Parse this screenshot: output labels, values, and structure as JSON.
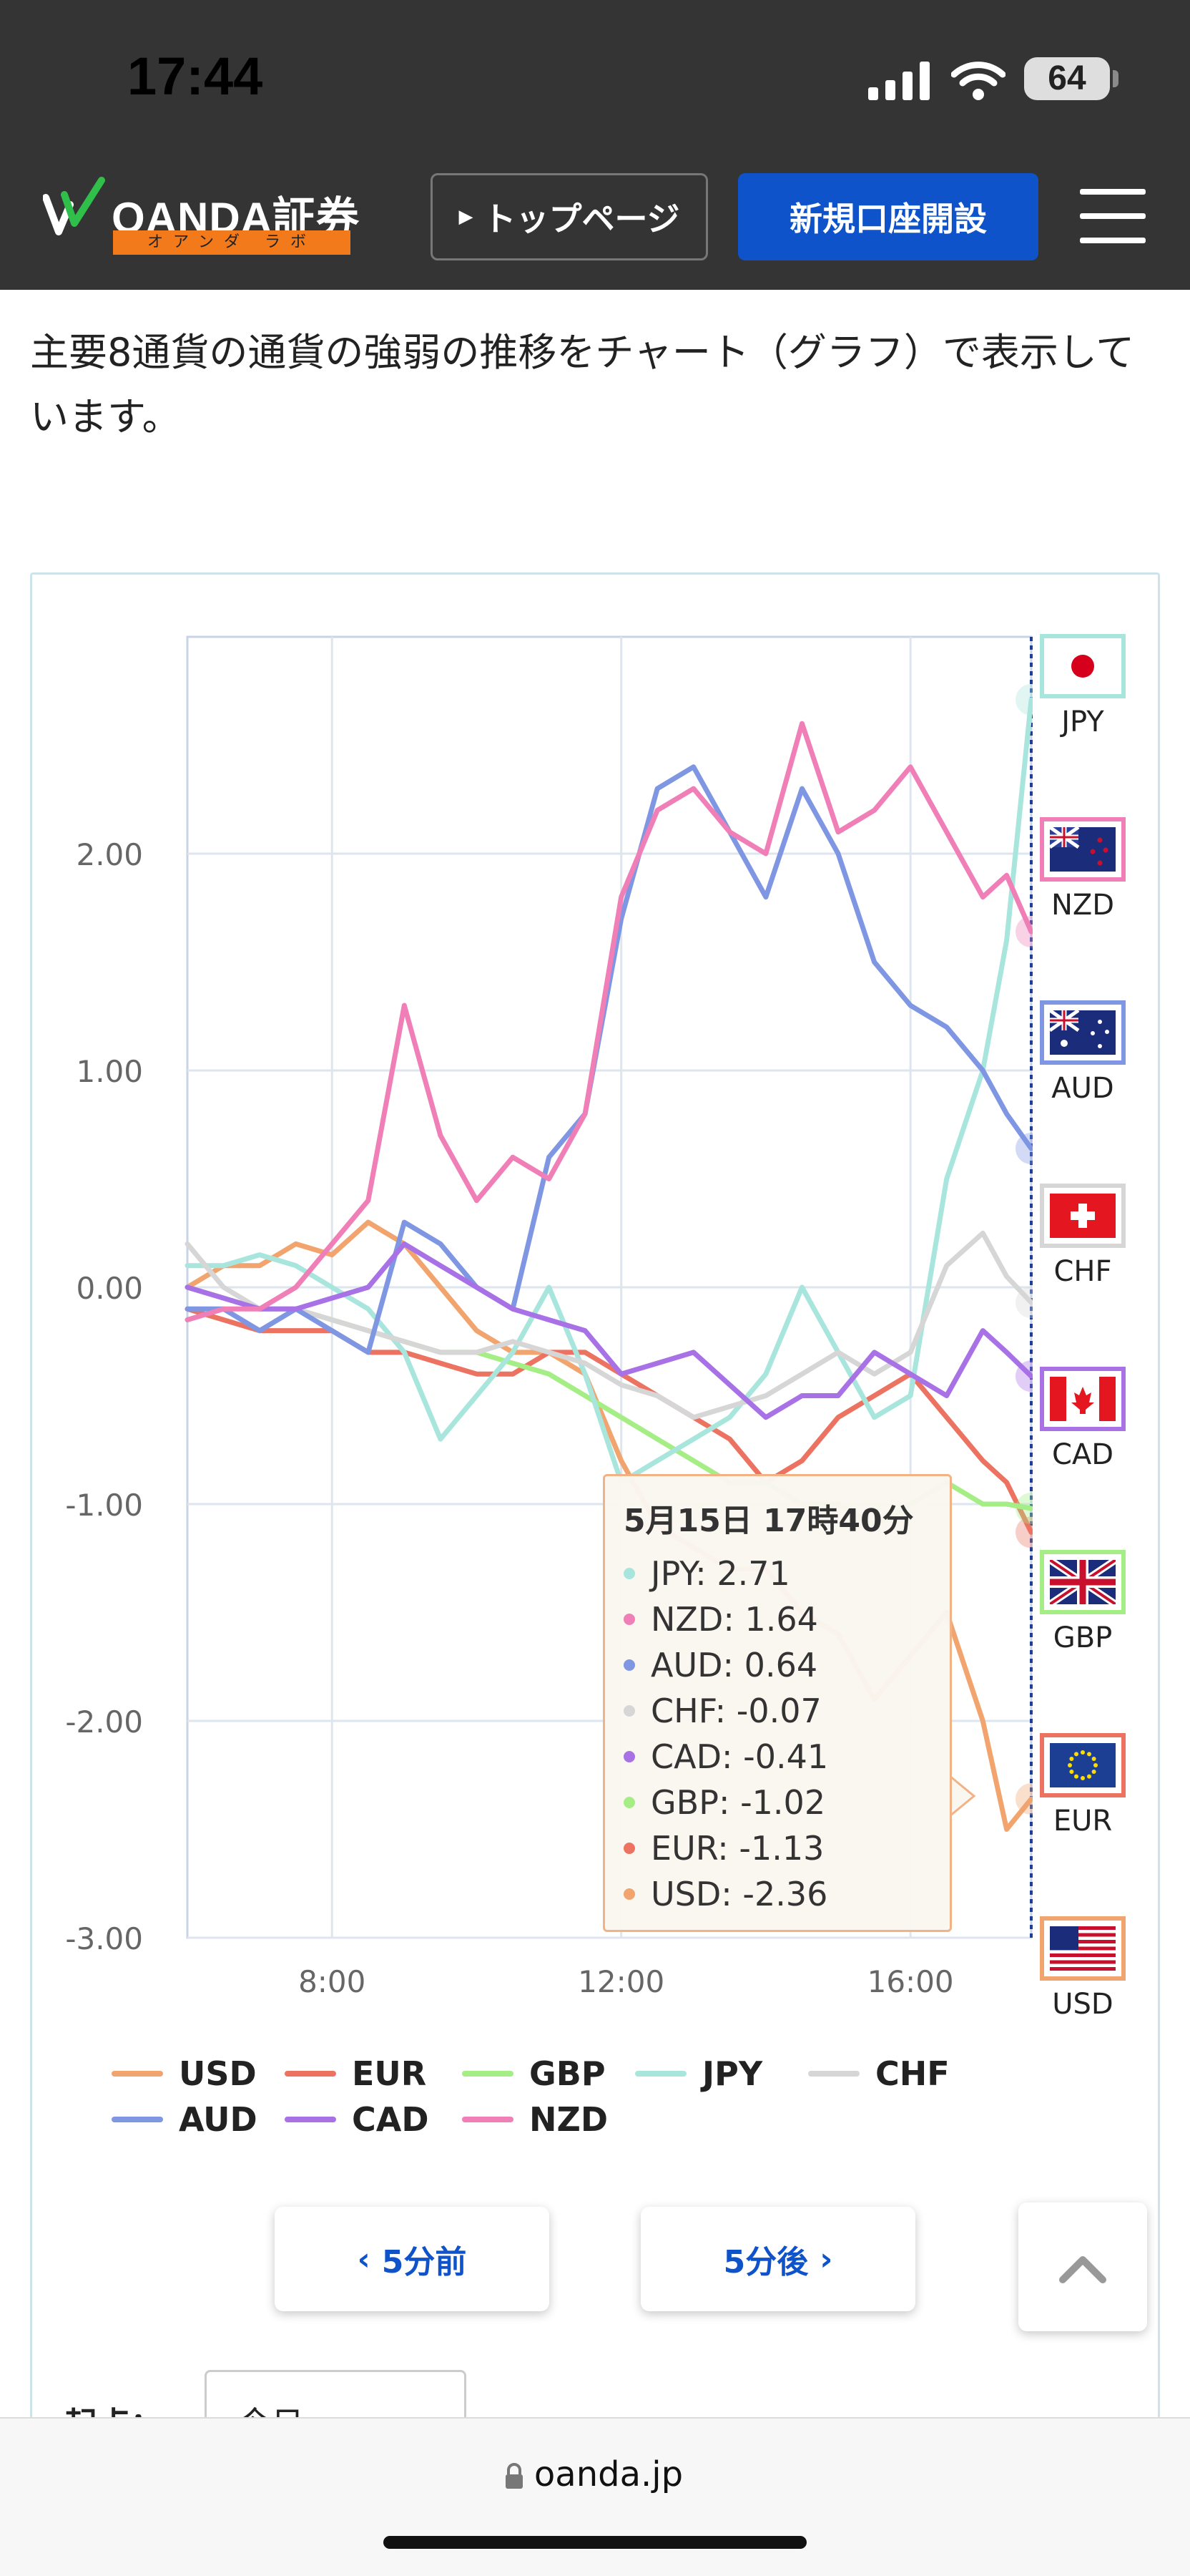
{
  "status_bar": {
    "time": "17:44",
    "battery": "64"
  },
  "header": {
    "logo_text": "OANDA証券",
    "logo_sub": "オアンダ ラボ",
    "toppage_label": "トップページ",
    "signup_label": "新規口座開設"
  },
  "intro": "主要8通貨の通貨の強弱の推移をチャート（グラフ）で表示しています。",
  "chart_data": {
    "type": "line",
    "ylim": [
      -3.0,
      3.0
    ],
    "y_ticks": [
      "2.00",
      "1.00",
      "0.00",
      "-1.00",
      "-2.00",
      "-3.00"
    ],
    "y_tick_values": [
      2,
      1,
      0,
      -1,
      -2,
      -3
    ],
    "x_ticks": [
      "8:00",
      "12:00",
      "16:00"
    ],
    "x_tick_values": [
      8,
      12,
      16
    ],
    "xlim": [
      6,
      17.67
    ],
    "legend_position": "bottom",
    "grid": true,
    "series": [
      {
        "name": "USD",
        "color": "#f2a46e",
        "x": [
          6,
          6.5,
          7,
          7.5,
          8,
          8.5,
          9,
          9.5,
          10,
          10.5,
          11,
          11.5,
          12,
          12.5,
          13,
          13.5,
          14,
          14.5,
          15,
          15.5,
          16,
          16.5,
          17,
          17.33,
          17.67
        ],
        "y": [
          0.0,
          0.1,
          0.1,
          0.2,
          0.15,
          0.3,
          0.2,
          0.0,
          -0.2,
          -0.3,
          -0.3,
          -0.4,
          -0.8,
          -1.1,
          -1.2,
          -1.3,
          -1.3,
          -1.5,
          -1.6,
          -1.9,
          -1.7,
          -1.5,
          -2.0,
          -2.5,
          -2.36
        ]
      },
      {
        "name": "EUR",
        "color": "#ec7361",
        "x": [
          6,
          6.5,
          7,
          7.5,
          8,
          8.5,
          9,
          9.5,
          10,
          10.5,
          11,
          11.5,
          12,
          12.5,
          13,
          13.5,
          14,
          14.5,
          15,
          15.5,
          16,
          16.5,
          17,
          17.33,
          17.67
        ],
        "y": [
          -0.1,
          -0.15,
          -0.2,
          -0.2,
          -0.2,
          -0.3,
          -0.3,
          -0.35,
          -0.4,
          -0.4,
          -0.3,
          -0.3,
          -0.4,
          -0.5,
          -0.6,
          -0.7,
          -0.9,
          -0.8,
          -0.6,
          -0.5,
          -0.4,
          -0.6,
          -0.8,
          -0.9,
          -1.13
        ]
      },
      {
        "name": "GBP",
        "color": "#a5ee86",
        "x": [
          6,
          6.5,
          7,
          7.5,
          8,
          8.5,
          9,
          9.5,
          10,
          10.5,
          11,
          11.5,
          12,
          12.5,
          13,
          13.5,
          14,
          14.5,
          15,
          15.5,
          16,
          16.5,
          17,
          17.33,
          17.67
        ],
        "y": [
          0.0,
          -0.05,
          -0.1,
          -0.1,
          -0.15,
          -0.2,
          -0.25,
          -0.3,
          -0.3,
          -0.35,
          -0.4,
          -0.5,
          -0.6,
          -0.7,
          -0.8,
          -0.9,
          -0.9,
          -1.0,
          -1.0,
          -1.1,
          -1.0,
          -0.9,
          -1.0,
          -1.0,
          -1.02
        ]
      },
      {
        "name": "JPY",
        "color": "#a8e6dd",
        "x": [
          6,
          6.5,
          7,
          7.5,
          8,
          8.5,
          9,
          9.5,
          10,
          10.5,
          11,
          11.5,
          12,
          12.5,
          13,
          13.5,
          14,
          14.5,
          15,
          15.5,
          16,
          16.5,
          17,
          17.33,
          17.67
        ],
        "y": [
          0.1,
          0.1,
          0.15,
          0.1,
          0.0,
          -0.1,
          -0.3,
          -0.7,
          -0.5,
          -0.3,
          0.0,
          -0.4,
          -0.9,
          -0.8,
          -0.7,
          -0.6,
          -0.4,
          0.0,
          -0.3,
          -0.6,
          -0.5,
          0.5,
          1.0,
          1.6,
          2.71
        ]
      },
      {
        "name": "CHF",
        "color": "#d6d6d6",
        "x": [
          6,
          6.5,
          7,
          7.5,
          8,
          8.5,
          9,
          9.5,
          10,
          10.5,
          11,
          11.5,
          12,
          12.5,
          13,
          13.5,
          14,
          14.5,
          15,
          15.5,
          16,
          16.5,
          17,
          17.33,
          17.67
        ],
        "y": [
          0.2,
          0.0,
          -0.1,
          -0.1,
          -0.15,
          -0.2,
          -0.25,
          -0.3,
          -0.3,
          -0.25,
          -0.3,
          -0.35,
          -0.45,
          -0.5,
          -0.6,
          -0.55,
          -0.5,
          -0.4,
          -0.3,
          -0.4,
          -0.3,
          0.1,
          0.25,
          0.05,
          -0.07
        ]
      },
      {
        "name": "AUD",
        "color": "#7f96e3",
        "x": [
          6,
          6.5,
          7,
          7.5,
          8,
          8.5,
          9,
          9.5,
          10,
          10.5,
          11,
          11.5,
          12,
          12.5,
          13,
          13.5,
          14,
          14.5,
          15,
          15.5,
          16,
          16.5,
          17,
          17.33,
          17.67
        ],
        "y": [
          -0.1,
          -0.1,
          -0.2,
          -0.1,
          -0.2,
          -0.3,
          0.3,
          0.2,
          0.0,
          -0.1,
          0.6,
          0.8,
          1.7,
          2.3,
          2.4,
          2.1,
          1.8,
          2.3,
          2.0,
          1.5,
          1.3,
          1.2,
          1.0,
          0.8,
          0.64
        ]
      },
      {
        "name": "CAD",
        "color": "#a871e6",
        "x": [
          6,
          6.5,
          7,
          7.5,
          8,
          8.5,
          9,
          9.5,
          10,
          10.5,
          11,
          11.5,
          12,
          12.5,
          13,
          13.5,
          14,
          14.5,
          15,
          15.5,
          16,
          16.5,
          17,
          17.33,
          17.67
        ],
        "y": [
          0.0,
          -0.05,
          -0.1,
          -0.1,
          -0.05,
          0.0,
          0.2,
          0.1,
          0.0,
          -0.1,
          -0.15,
          -0.2,
          -0.4,
          -0.35,
          -0.3,
          -0.45,
          -0.6,
          -0.5,
          -0.5,
          -0.3,
          -0.4,
          -0.5,
          -0.2,
          -0.3,
          -0.41
        ]
      },
      {
        "name": "NZD",
        "color": "#ef7fb6",
        "x": [
          6,
          6.5,
          7,
          7.5,
          8,
          8.5,
          9,
          9.5,
          10,
          10.5,
          11,
          11.5,
          12,
          12.5,
          13,
          13.5,
          14,
          14.5,
          15,
          15.5,
          16,
          16.5,
          17,
          17.33,
          17.67
        ],
        "y": [
          -0.15,
          -0.1,
          -0.1,
          0.0,
          0.2,
          0.4,
          1.3,
          0.7,
          0.4,
          0.6,
          0.5,
          0.8,
          1.8,
          2.2,
          2.3,
          2.1,
          2.0,
          2.6,
          2.1,
          2.2,
          2.4,
          2.1,
          1.8,
          1.9,
          1.64
        ]
      }
    ]
  },
  "flags": [
    {
      "code": "JPY",
      "border": "#a8e6dd"
    },
    {
      "code": "NZD",
      "border": "#ef7fb6"
    },
    {
      "code": "AUD",
      "border": "#7f96e3"
    },
    {
      "code": "CHF",
      "border": "#d6d6d6"
    },
    {
      "code": "CAD",
      "border": "#a871e6"
    },
    {
      "code": "GBP",
      "border": "#a5ee86"
    },
    {
      "code": "EUR",
      "border": "#ec7361"
    },
    {
      "code": "USD",
      "border": "#f2a46e"
    }
  ],
  "tooltip": {
    "title": "5月15日 17時40分",
    "rows": [
      {
        "label": "JPY: 2.71",
        "color": "#a8e6dd"
      },
      {
        "label": "NZD: 1.64",
        "color": "#ef7fb6"
      },
      {
        "label": "AUD: 0.64",
        "color": "#7f96e3"
      },
      {
        "label": "CHF: -0.07",
        "color": "#d6d6d6"
      },
      {
        "label": "CAD: -0.41",
        "color": "#a871e6"
      },
      {
        "label": "GBP: -1.02",
        "color": "#a5ee86"
      },
      {
        "label": "EUR: -1.13",
        "color": "#ec7361"
      },
      {
        "label": "USD: -2.36",
        "color": "#f2a46e"
      }
    ]
  },
  "nav": {
    "prev_label": "5分前",
    "next_label": "5分後"
  },
  "origin": {
    "label": "起点：",
    "value": "今日"
  },
  "url_bar": {
    "url": "oanda.jp"
  }
}
